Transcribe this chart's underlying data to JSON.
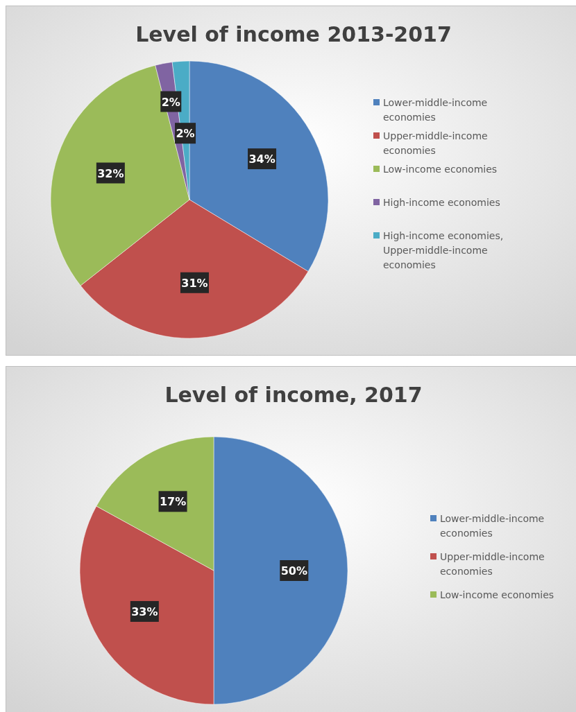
{
  "chart_data": [
    {
      "type": "pie",
      "title": "Level of income 2013-2017",
      "categories": [
        "Lower-middle-income economies",
        "Upper-middle-income economies",
        "Low-income economies",
        "High-income economies",
        "High-income economies, Upper-middle-income economies"
      ],
      "values": [
        34,
        31,
        32,
        2,
        2
      ],
      "colors": [
        "#4f81bd",
        "#c0504d",
        "#9bbb59",
        "#8064a2",
        "#4bacc6"
      ],
      "value_labels": [
        "34%",
        "31%",
        "32%",
        "2%",
        "2%"
      ],
      "legend": "right"
    },
    {
      "type": "pie",
      "title": "Level of income, 2017",
      "categories": [
        "Lower-middle-income economies",
        "Upper-middle-income economies",
        "Low-income economies"
      ],
      "values": [
        50,
        33,
        17
      ],
      "colors": [
        "#4f81bd",
        "#c0504d",
        "#9bbb59"
      ],
      "value_labels": [
        "50%",
        "33%",
        "17%"
      ],
      "legend": "right"
    }
  ]
}
